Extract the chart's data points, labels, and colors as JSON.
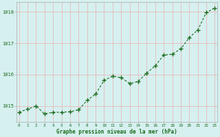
{
  "x": [
    0,
    1,
    2,
    3,
    4,
    5,
    6,
    7,
    8,
    9,
    10,
    11,
    12,
    13,
    14,
    15,
    16,
    17,
    18,
    19,
    20,
    21,
    22,
    23
  ],
  "y": [
    1014.8,
    1014.9,
    1015.0,
    1014.75,
    1014.8,
    1014.8,
    1014.82,
    1014.88,
    1015.18,
    1015.38,
    1015.82,
    1015.95,
    1015.9,
    1015.72,
    1015.78,
    1016.05,
    1016.28,
    1016.62,
    1016.65,
    1016.82,
    1017.18,
    1017.42,
    1017.98,
    1018.12
  ],
  "line_color": "#1a6b1a",
  "marker_color": "#1a6b1a",
  "bg_color": "#d6f0f0",
  "grid_color": "#e8b8b8",
  "xlabel": "Graphe pression niveau de la mer (hPa)",
  "xlabel_color": "#1a6b1a",
  "tick_color": "#1a6b1a",
  "ylim": [
    1014.5,
    1018.3
  ],
  "yticks": [
    1015,
    1016,
    1017,
    1018
  ],
  "xticks": [
    0,
    1,
    2,
    3,
    4,
    5,
    6,
    7,
    8,
    9,
    10,
    11,
    12,
    13,
    14,
    15,
    16,
    17,
    18,
    19,
    20,
    21,
    22,
    23
  ],
  "xlim": [
    -0.3,
    23.3
  ]
}
